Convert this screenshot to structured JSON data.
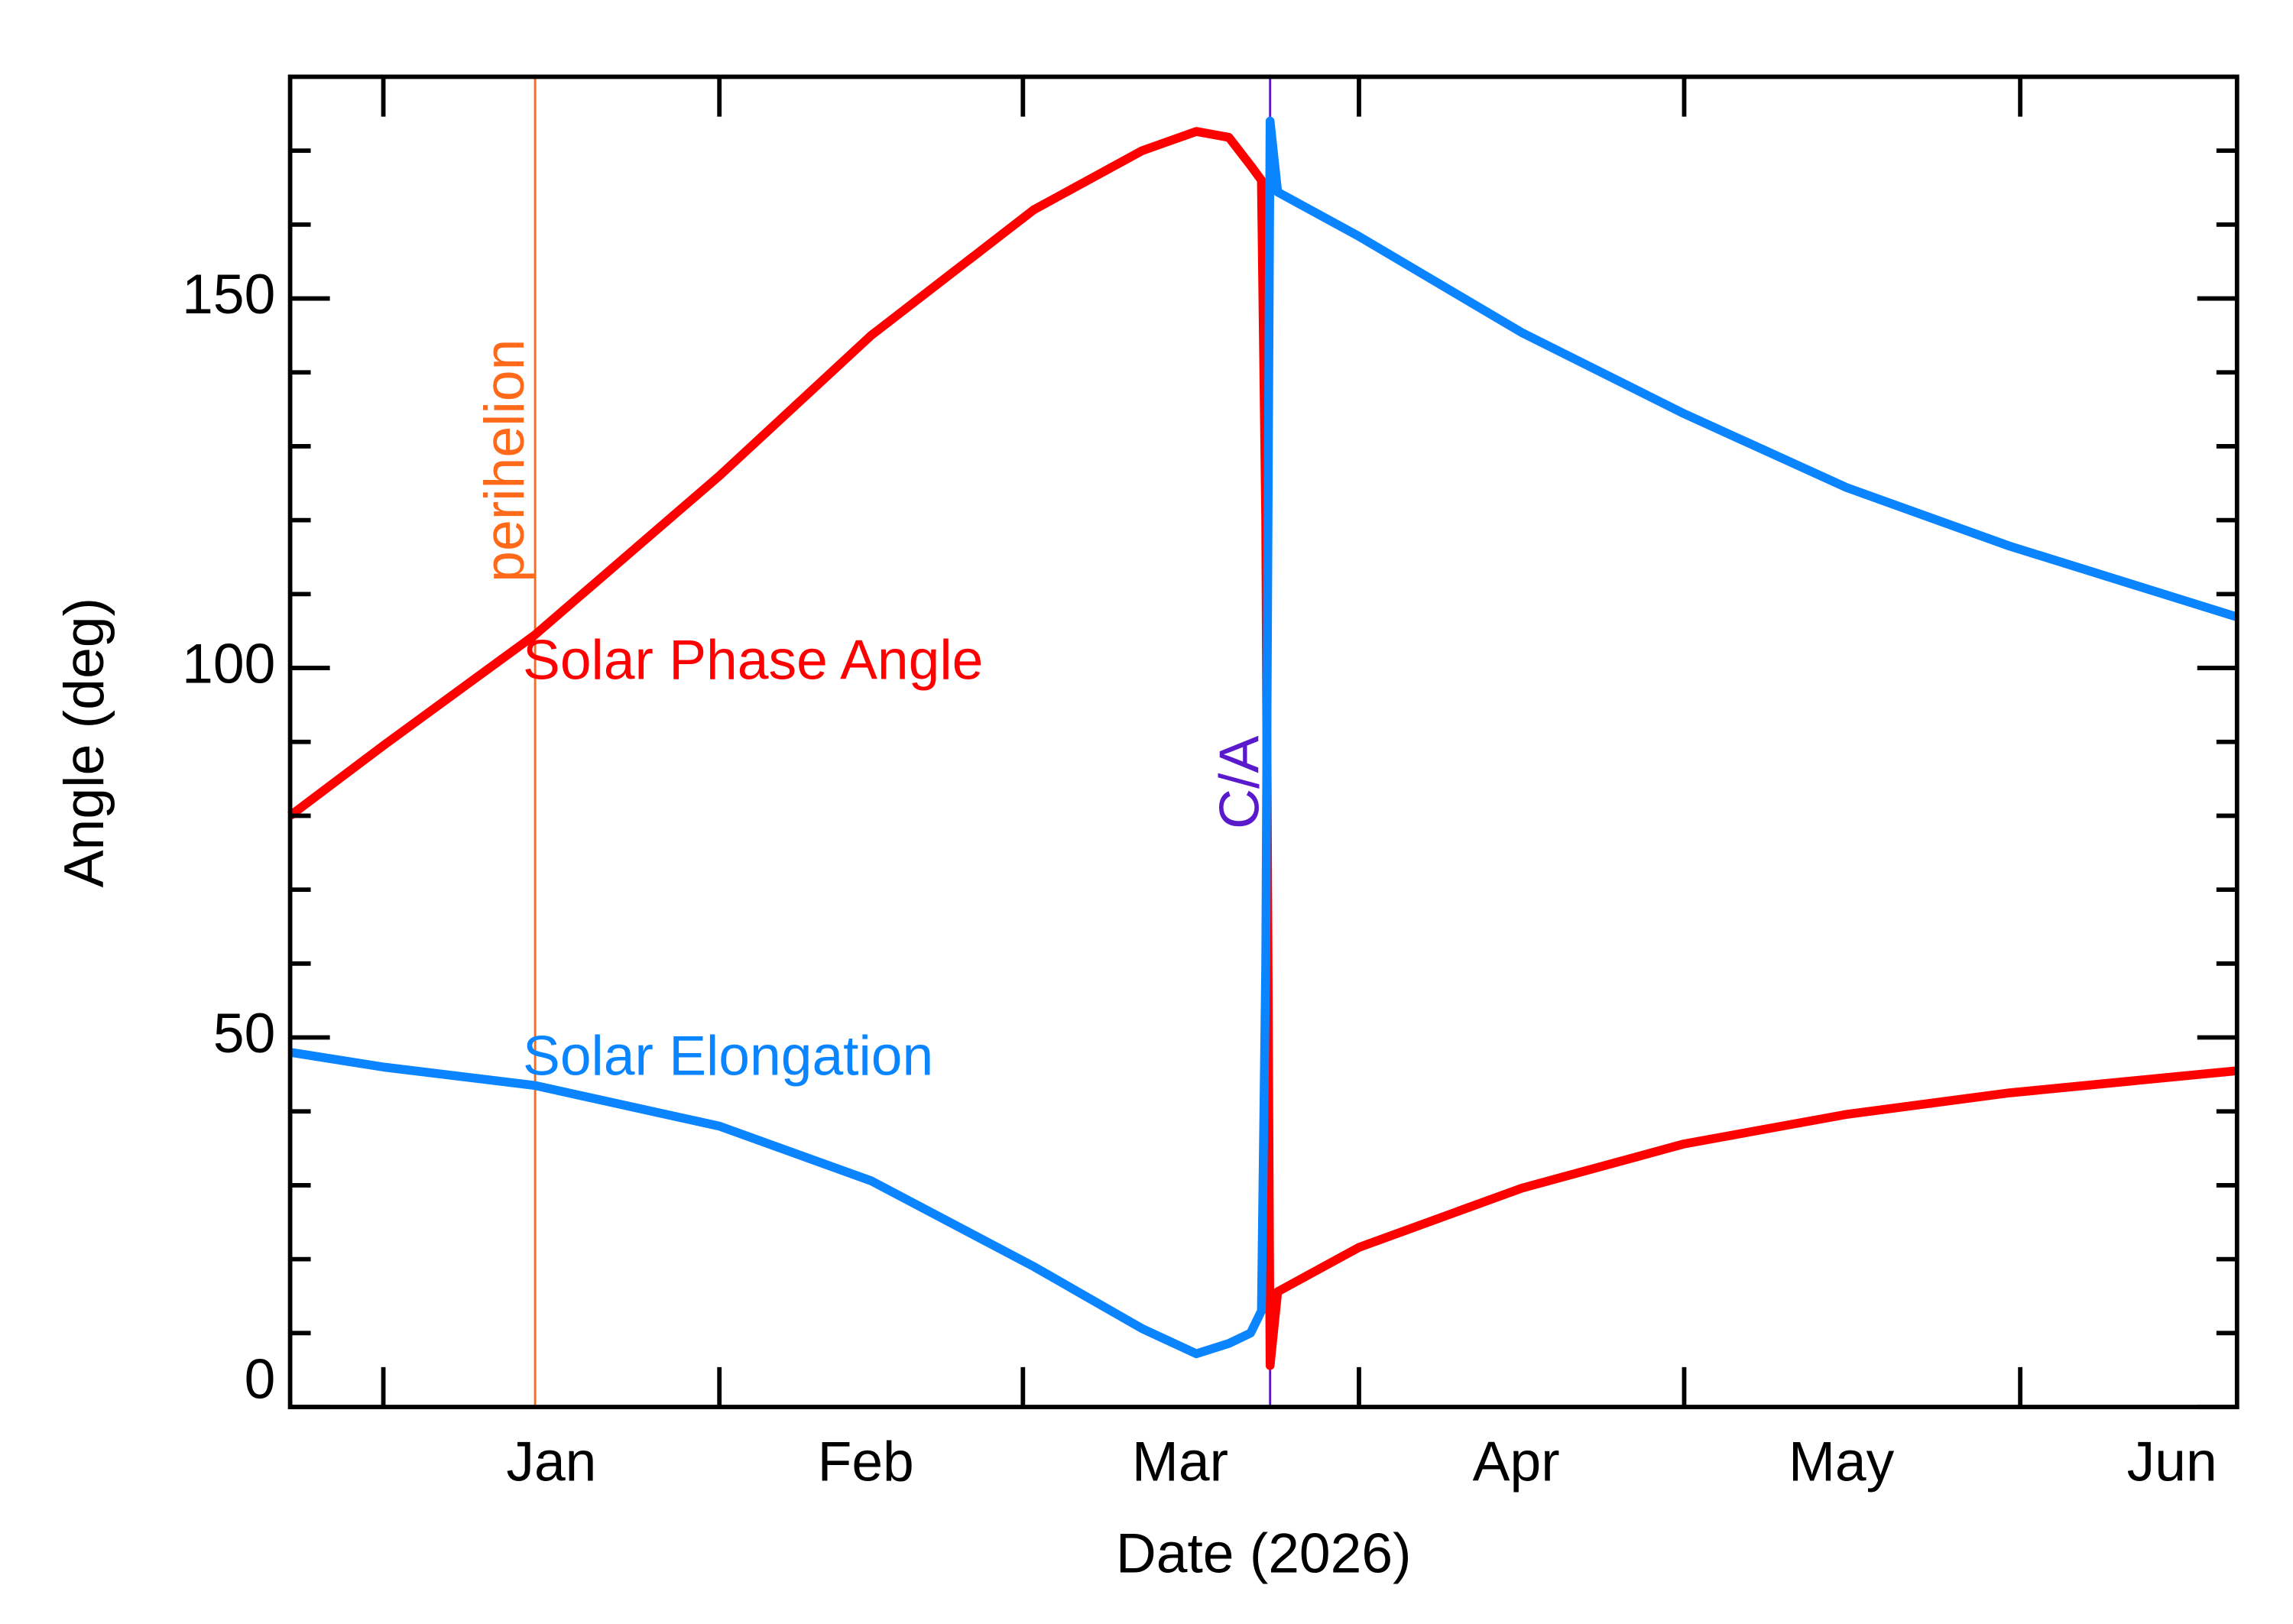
{
  "chart_data": {
    "type": "line",
    "xlabel": "Date (2026)",
    "ylabel": "Angle (deg)",
    "x": [
      -8.6,
      0,
      14,
      31,
      45,
      60,
      70,
      75,
      78,
      80,
      81,
      81.4,
      81.8,
      82.5,
      90,
      105,
      120,
      135,
      150,
      171
    ],
    "series": [
      {
        "name": "Solar Phase Angle",
        "color": "#ff0000",
        "values": [
          80,
          89.5,
          104.5,
          126,
          145,
          162,
          170,
          172.6,
          171.8,
          168,
          166,
          120,
          5.6,
          15.6,
          21.6,
          29.6,
          35.6,
          39.6,
          42.5,
          45.5
        ]
      },
      {
        "name": "Solar Elongation",
        "color": "#0a84ff",
        "values": [
          48,
          46,
          43.5,
          38,
          30.6,
          19,
          10.6,
          7.2,
          8.6,
          10,
          13,
          60,
          174,
          164.4,
          158.4,
          145.4,
          134.4,
          124.4,
          116.5,
          106.9
        ]
      }
    ],
    "vlines": [
      {
        "x": 14,
        "label": "perihelion",
        "color": "#ff6a1a"
      },
      {
        "x": 81.8,
        "label": "C/A",
        "color": "#5a1acc"
      }
    ],
    "xlim": [
      -8.6,
      171
    ],
    "xticks": [
      {
        "value": 15.5,
        "label": "Jan"
      },
      {
        "value": 44.5,
        "label": "Feb"
      },
      {
        "value": 73.5,
        "label": "Mar"
      },
      {
        "value": 104.5,
        "label": "Apr"
      },
      {
        "value": 134.5,
        "label": "May"
      },
      {
        "value": 165,
        "label": "Jun"
      }
    ],
    "xminor": [
      0,
      31,
      59,
      90,
      120,
      151
    ],
    "ylim": [
      0,
      180
    ],
    "yticks": [
      0,
      50,
      100,
      150
    ],
    "yminor": [
      10,
      20,
      30,
      40,
      60,
      70,
      80,
      90,
      110,
      120,
      130,
      140,
      160,
      170
    ]
  }
}
